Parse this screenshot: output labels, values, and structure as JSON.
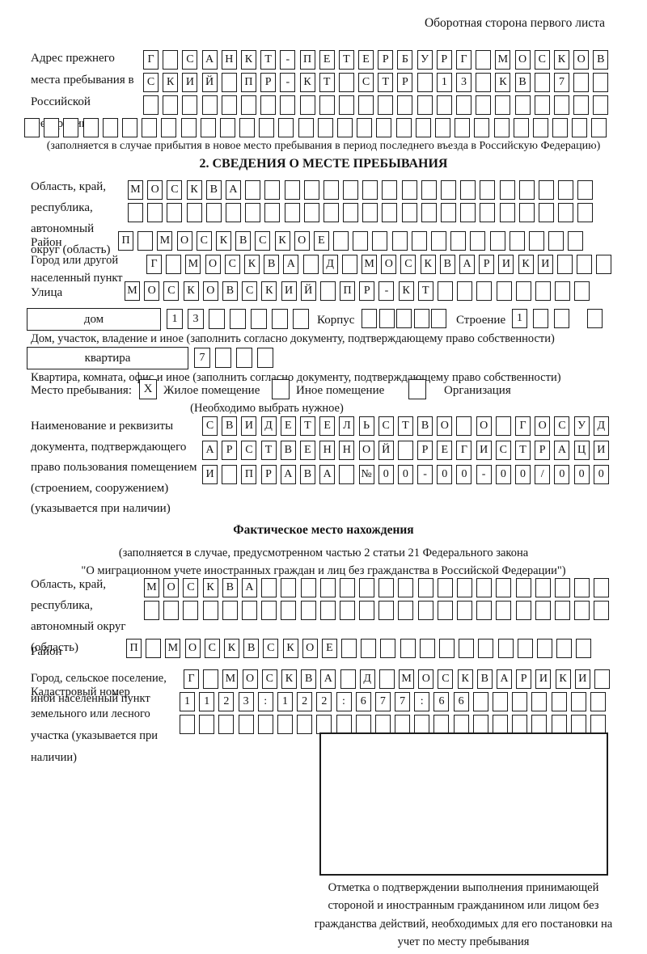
{
  "header": {
    "back_note": "Оборотная сторона первого листа"
  },
  "prev_address": {
    "label": "Адрес прежнего места пребывания в Российской Федерации",
    "line1": {
      "text": "Г САНКТ-ПЕТЕРБУРГ МОСКОВ",
      "len": 24
    },
    "line2": {
      "text": "СКИЙ ПР-КТ СТР 13 КВ 7",
      "len": 24
    },
    "line3": {
      "text": "",
      "len": 24
    },
    "line4": {
      "text": "",
      "len": 30
    },
    "note": "(заполняется в случае прибытия в новое место пребывания в период последнего въезда в Российскую Федерацию)"
  },
  "section2": {
    "title": "2. СВЕДЕНИЯ О МЕСТЕ ПРЕБЫВАНИЯ",
    "region": {
      "label": "Область, край, республика, автономный округ (область)",
      "line1": {
        "text": "МОСКВА",
        "len": 24
      },
      "line2": {
        "text": "",
        "len": 24
      }
    },
    "district": {
      "label": "Район",
      "line": {
        "text": "П МОСКВСКОЕ",
        "len": 24
      }
    },
    "city": {
      "label": "Город или другой населенный пункт",
      "line": {
        "text": "Г МОСКВА Д МОСКВАРИКИ",
        "len": 24
      }
    },
    "street": {
      "label": "Улица",
      "line": {
        "text": "МОСКОВСКИЙ ПР-КТ",
        "len": 24
      }
    },
    "house": {
      "box_label": "дом",
      "line": {
        "text": "13",
        "len": 7
      },
      "korpus_label": "Корпус",
      "korpus_line": {
        "text": "",
        "len": 5
      },
      "stroenie_label": "Строение",
      "stroenie_line": {
        "text": "1",
        "len": 4
      },
      "note": "Дом, участок, владение и иное (заполнить согласно документу, подтверждающему право собственности)"
    },
    "apartment": {
      "box_label": "квартира",
      "line": {
        "text": "7",
        "len": 4
      },
      "note": "Квартира, комната, офис и иное (заполнить согласно документу, подтверждающему право собственности)"
    },
    "stay_place": {
      "label": "Место пребывания:",
      "options": [
        {
          "label": "Жилое помещение",
          "mark": "X"
        },
        {
          "label": "Иное помещение",
          "mark": ""
        },
        {
          "label": "Организация",
          "mark": ""
        }
      ],
      "note": "(Необходимо выбрать нужное)"
    },
    "document": {
      "label": "Наименование и реквизиты документа, подтверждающего право пользования помещением (строением, сооружением) (указывается при наличии)",
      "line1": {
        "text": "СВИДЕТЕЛЬСТВО О ГОСУД",
        "len": 21
      },
      "line2": {
        "text": "АРСТВЕННОЙ РЕГИСТРАЦИ",
        "len": 21
      },
      "line3": {
        "text": "И ПРАВА №00-00-00/000",
        "len": 21
      }
    }
  },
  "actual_location": {
    "title": "Фактическое место нахождения",
    "note1": "(заполняется в случае, предусмотренном частью 2 статьи 21 Федерального закона",
    "note2": "\"О миграционном учете иностранных граждан и лиц без гражданства в Российской Федерации\")",
    "region": {
      "label": "Область, край, республика, автономный округ (область)",
      "line1": {
        "text": "МОСКВА",
        "len": 24
      },
      "line2": {
        "text": "",
        "len": 24
      }
    },
    "district": {
      "label": "Район",
      "line": {
        "text": "П МОСКВСКОЕ",
        "len": 24
      }
    },
    "city": {
      "label": "Город, сельское поселение, иной населенный пункт",
      "line": {
        "text": "Г МОСКВА Д МОСКВАРИКИ",
        "len": 22
      }
    },
    "cadastre": {
      "label": "Кадастровый номер земельного или лесного участка (указывается при наличии)",
      "line1": {
        "text": "1123:122:677:66",
        "len": 22
      },
      "line2": {
        "text": "",
        "len": 22
      }
    },
    "stamp_note": "Отметка о подтверждении выполнения принимающей стороной и иностранным гражданином или лицом без гражданства действий, необходимых для его постановки на учет по месту пребывания"
  }
}
